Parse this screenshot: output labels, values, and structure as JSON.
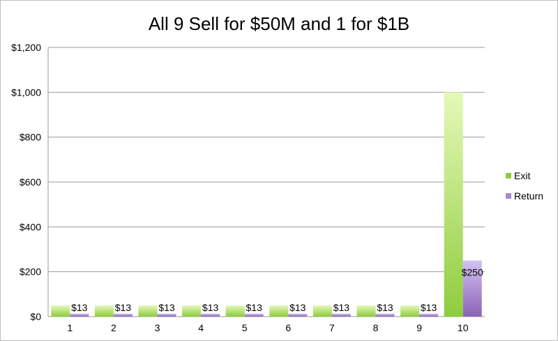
{
  "chart_data": {
    "type": "bar",
    "title": "All 9 Sell for $50M and 1 for $1B",
    "categories": [
      "1",
      "2",
      "3",
      "4",
      "5",
      "6",
      "7",
      "8",
      "9",
      "10"
    ],
    "series": [
      {
        "name": "Exit",
        "values": [
          50,
          50,
          50,
          50,
          50,
          50,
          50,
          50,
          50,
          1000
        ],
        "color": "#a6dc5a"
      },
      {
        "name": "Return",
        "values": [
          13,
          13,
          13,
          13,
          13,
          13,
          13,
          13,
          13,
          250
        ],
        "color": "#a889d2"
      }
    ],
    "data_labels": [
      "$13",
      "$13",
      "$13",
      "$13",
      "$13",
      "$13",
      "$13",
      "$13",
      "$13",
      "$250"
    ],
    "y_ticks": [
      "$0",
      "$200",
      "$400",
      "$600",
      "$800",
      "$1,000",
      "$1,200"
    ],
    "ylim": [
      0,
      1200
    ],
    "grid": true,
    "legend_position": "right"
  }
}
